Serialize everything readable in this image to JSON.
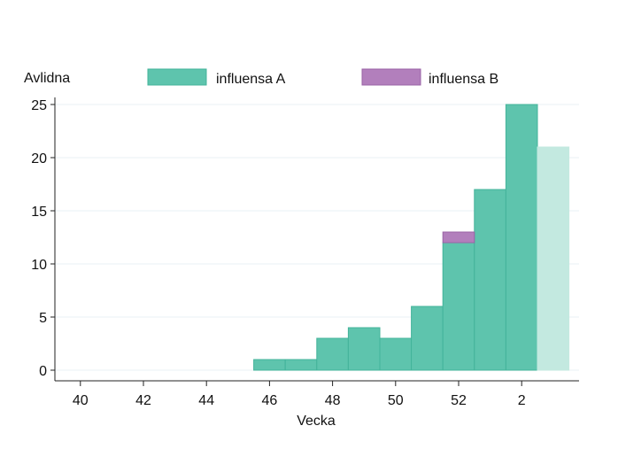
{
  "chart_data": {
    "type": "bar",
    "stacked": true,
    "ylabel": "Avlidna",
    "xlabel": "Vecka",
    "ylim": [
      0,
      25
    ],
    "yticks": [
      0,
      5,
      10,
      15,
      20,
      25
    ],
    "grid": "horizontal",
    "legend_position": "top",
    "categories": [
      "40",
      "41",
      "42",
      "43",
      "44",
      "45",
      "46",
      "47",
      "48",
      "49",
      "50",
      "51",
      "52",
      "1",
      "2",
      "3"
    ],
    "xtick_labels": [
      "40",
      "42",
      "44",
      "46",
      "48",
      "50",
      "52",
      "2"
    ],
    "series": [
      {
        "name": "influensa A",
        "color": "#5ec4ad",
        "values": [
          0,
          0,
          0,
          0,
          0,
          0,
          1,
          1,
          3,
          4,
          3,
          6,
          12,
          17,
          25,
          21
        ],
        "faded_last": true,
        "faded_color": "#c3e9e0"
      },
      {
        "name": "influensa B",
        "color": "#b27fbc",
        "values": [
          0,
          0,
          0,
          0,
          0,
          0,
          0,
          0,
          0,
          0,
          0,
          0,
          1,
          0,
          0,
          0
        ]
      }
    ]
  }
}
